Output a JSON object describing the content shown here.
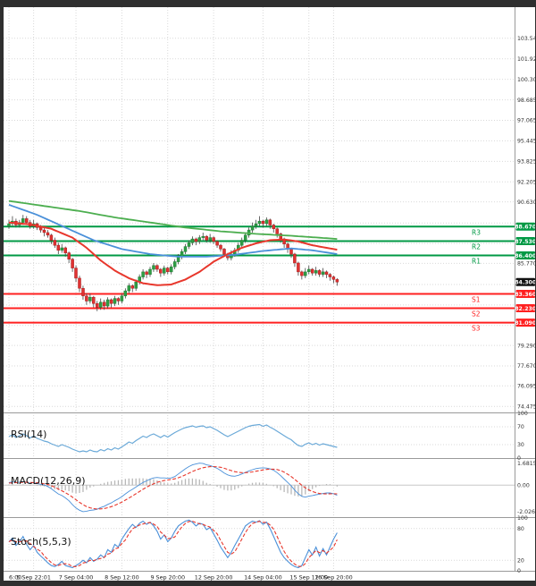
{
  "chart_data": {
    "type": "candlestick",
    "title": "",
    "price_range": [
      74.0,
      106.0
    ],
    "price_axis": {
      "labels": [
        {
          "text": "103.545",
          "value": 103.545
        },
        {
          "text": "101.925",
          "value": 101.925
        },
        {
          "text": "100.305",
          "value": 100.305
        },
        {
          "text": "98.685",
          "value": 98.685
        },
        {
          "text": "97.065",
          "value": 97.065
        },
        {
          "text": "95.445",
          "value": 95.445
        },
        {
          "text": "93.825",
          "value": 93.825
        },
        {
          "text": "92.205",
          "value": 92.205
        },
        {
          "text": "90.630",
          "value": 90.63
        },
        {
          "text": "85.770",
          "value": 85.77
        },
        {
          "text": "79.290",
          "value": 79.29
        },
        {
          "text": "77.670",
          "value": 77.67
        },
        {
          "text": "76.095",
          "value": 76.095
        },
        {
          "text": "74.475",
          "value": 74.475
        }
      ],
      "extra_gridlines": [
        88.965,
        87.345,
        84.105,
        82.485,
        80.865
      ]
    },
    "time_axis": {
      "tick_indices": [
        0,
        7,
        19,
        32,
        45,
        58,
        72,
        85,
        92
      ],
      "tick_labels": [
        "6:00",
        "5 Sep 22:01",
        "7 Sep 04:00",
        "8 Sep 12:00",
        "9 Sep 20:00",
        "12 Sep 20:00",
        "14 Sep 04:00",
        "15 Sep 12:00",
        "16 Sep 20:00"
      ]
    },
    "levels": [
      {
        "name": "R3",
        "price": 88.67,
        "label": "88.670",
        "kind": "resistance"
      },
      {
        "name": "R2",
        "price": 87.53,
        "label": "87.530",
        "kind": "resistance"
      },
      {
        "name": "R1",
        "price": 86.4,
        "label": "86.400",
        "kind": "resistance"
      },
      {
        "name": "S1",
        "price": 83.36,
        "label": "83.360",
        "kind": "support"
      },
      {
        "name": "S2",
        "price": 82.23,
        "label": "82.230",
        "kind": "support"
      },
      {
        "name": "S3",
        "price": 81.09,
        "label": "81.090",
        "kind": "support"
      }
    ],
    "current_price": {
      "label": "84.300",
      "price": 84.3
    },
    "candles_ohlc": [
      [
        88.7,
        89.2,
        88.5,
        88.9
      ],
      [
        88.9,
        89.5,
        88.7,
        89.1
      ],
      [
        89.1,
        89.3,
        88.6,
        88.8
      ],
      [
        88.8,
        89.2,
        88.6,
        89.0
      ],
      [
        89.0,
        89.6,
        88.8,
        89.3
      ],
      [
        89.3,
        89.5,
        88.8,
        89.0
      ],
      [
        89.0,
        89.2,
        88.5,
        88.7
      ],
      [
        88.7,
        89.2,
        88.5,
        88.9
      ],
      [
        88.9,
        89.0,
        88.4,
        88.6
      ],
      [
        88.6,
        88.8,
        88.2,
        88.4
      ],
      [
        88.4,
        88.6,
        87.9,
        88.2
      ],
      [
        88.2,
        88.4,
        87.8,
        88.0
      ],
      [
        88.0,
        88.1,
        87.3,
        87.6
      ],
      [
        87.6,
        87.8,
        87.0,
        87.2
      ],
      [
        87.2,
        87.4,
        86.5,
        86.8
      ],
      [
        86.8,
        87.3,
        86.6,
        87.0
      ],
      [
        87.0,
        87.1,
        86.3,
        86.6
      ],
      [
        86.6,
        86.7,
        85.8,
        86.1
      ],
      [
        86.1,
        86.2,
        85.1,
        85.4
      ],
      [
        85.4,
        85.6,
        84.3,
        84.6
      ],
      [
        84.6,
        84.8,
        83.5,
        83.8
      ],
      [
        83.8,
        84.0,
        82.9,
        83.2
      ],
      [
        83.2,
        83.4,
        82.5,
        82.8
      ],
      [
        82.8,
        83.4,
        82.6,
        83.1
      ],
      [
        83.1,
        83.2,
        82.3,
        82.6
      ],
      [
        82.6,
        82.8,
        82.0,
        82.3
      ],
      [
        82.3,
        83.0,
        82.1,
        82.7
      ],
      [
        82.7,
        82.9,
        82.1,
        82.4
      ],
      [
        82.4,
        83.1,
        82.2,
        82.9
      ],
      [
        82.9,
        83.0,
        82.3,
        82.6
      ],
      [
        82.6,
        83.2,
        82.4,
        83.0
      ],
      [
        83.0,
        83.1,
        82.5,
        82.8
      ],
      [
        82.8,
        83.4,
        82.6,
        83.2
      ],
      [
        83.2,
        83.8,
        83.0,
        83.6
      ],
      [
        83.6,
        84.2,
        83.4,
        84.0
      ],
      [
        84.0,
        84.1,
        83.5,
        83.8
      ],
      [
        83.8,
        84.5,
        83.6,
        84.3
      ],
      [
        84.3,
        84.9,
        84.1,
        84.7
      ],
      [
        84.7,
        85.3,
        84.5,
        85.1
      ],
      [
        85.1,
        85.2,
        84.6,
        84.9
      ],
      [
        84.9,
        85.5,
        84.7,
        85.3
      ],
      [
        85.3,
        85.8,
        85.1,
        85.6
      ],
      [
        85.6,
        85.7,
        85.1,
        85.3
      ],
      [
        85.3,
        85.4,
        84.7,
        85.0
      ],
      [
        85.0,
        85.6,
        84.8,
        85.4
      ],
      [
        85.4,
        85.5,
        84.9,
        85.1
      ],
      [
        85.1,
        85.7,
        84.9,
        85.5
      ],
      [
        85.5,
        86.1,
        85.3,
        85.9
      ],
      [
        85.9,
        86.5,
        85.7,
        86.3
      ],
      [
        86.3,
        86.9,
        86.1,
        86.7
      ],
      [
        86.7,
        87.3,
        86.5,
        87.1
      ],
      [
        87.1,
        87.6,
        86.9,
        87.4
      ],
      [
        87.4,
        87.9,
        87.2,
        87.7
      ],
      [
        87.7,
        87.8,
        87.2,
        87.5
      ],
      [
        87.5,
        88.0,
        87.3,
        87.8
      ],
      [
        87.8,
        88.2,
        87.6,
        87.9
      ],
      [
        87.9,
        88.0,
        87.4,
        87.6
      ],
      [
        87.6,
        88.1,
        87.4,
        87.8
      ],
      [
        87.8,
        87.9,
        87.3,
        87.5
      ],
      [
        87.5,
        87.6,
        87.0,
        87.2
      ],
      [
        87.2,
        87.3,
        86.7,
        86.9
      ],
      [
        86.9,
        87.0,
        86.3,
        86.5
      ],
      [
        86.5,
        86.6,
        86.0,
        86.2
      ],
      [
        86.2,
        86.8,
        86.0,
        86.5
      ],
      [
        86.5,
        87.0,
        86.3,
        86.8
      ],
      [
        86.8,
        87.4,
        86.6,
        87.2
      ],
      [
        87.2,
        87.8,
        87.0,
        87.6
      ],
      [
        87.6,
        88.2,
        87.4,
        88.0
      ],
      [
        88.0,
        88.6,
        87.8,
        88.4
      ],
      [
        88.4,
        89.0,
        88.2,
        88.7
      ],
      [
        88.7,
        89.2,
        88.5,
        88.9
      ],
      [
        88.9,
        89.5,
        88.7,
        89.1
      ],
      [
        89.1,
        89.2,
        88.6,
        88.9
      ],
      [
        88.9,
        89.4,
        88.7,
        89.2
      ],
      [
        89.2,
        89.3,
        88.5,
        88.8
      ],
      [
        88.8,
        88.9,
        88.2,
        88.5
      ],
      [
        88.5,
        88.6,
        87.8,
        88.1
      ],
      [
        88.1,
        88.2,
        87.4,
        87.7
      ],
      [
        87.7,
        87.8,
        87.0,
        87.3
      ],
      [
        87.3,
        87.4,
        86.6,
        86.9
      ],
      [
        86.9,
        87.0,
        86.2,
        86.5
      ],
      [
        86.5,
        86.6,
        85.5,
        85.8
      ],
      [
        85.8,
        85.9,
        84.8,
        85.1
      ],
      [
        85.1,
        85.2,
        84.5,
        84.8
      ],
      [
        84.8,
        85.4,
        84.6,
        85.1
      ],
      [
        85.1,
        85.6,
        84.9,
        85.3
      ],
      [
        85.3,
        85.4,
        84.8,
        85.0
      ],
      [
        85.0,
        85.5,
        84.8,
        85.2
      ],
      [
        85.2,
        85.3,
        84.7,
        84.9
      ],
      [
        84.9,
        85.4,
        84.7,
        85.1
      ],
      [
        85.1,
        85.2,
        84.6,
        84.9
      ],
      [
        84.9,
        85.0,
        84.4,
        84.7
      ],
      [
        84.7,
        84.8,
        84.2,
        84.5
      ],
      [
        84.5,
        84.6,
        84.0,
        84.3
      ]
    ],
    "moving_averages": [
      {
        "name": "ma-slow-green",
        "points": [
          [
            0,
            90.7
          ],
          [
            10,
            90.3
          ],
          [
            20,
            89.9
          ],
          [
            30,
            89.4
          ],
          [
            40,
            89.0
          ],
          [
            50,
            88.6
          ],
          [
            60,
            88.3
          ],
          [
            70,
            88.1
          ],
          [
            80,
            87.95
          ],
          [
            93,
            87.7
          ]
        ]
      },
      {
        "name": "ma-mid-blue",
        "points": [
          [
            0,
            90.4
          ],
          [
            8,
            89.6
          ],
          [
            16,
            88.6
          ],
          [
            24,
            87.6
          ],
          [
            32,
            86.9
          ],
          [
            40,
            86.5
          ],
          [
            48,
            86.3
          ],
          [
            56,
            86.3
          ],
          [
            64,
            86.45
          ],
          [
            72,
            86.75
          ],
          [
            80,
            86.95
          ],
          [
            86,
            86.8
          ],
          [
            93,
            86.5
          ]
        ]
      },
      {
        "name": "ma-fast-red",
        "points": [
          [
            0,
            89.0
          ],
          [
            6,
            88.85
          ],
          [
            12,
            88.5
          ],
          [
            18,
            87.8
          ],
          [
            22,
            87.0
          ],
          [
            26,
            86.0
          ],
          [
            30,
            85.2
          ],
          [
            34,
            84.6
          ],
          [
            38,
            84.2
          ],
          [
            42,
            84.05
          ],
          [
            46,
            84.1
          ],
          [
            50,
            84.5
          ],
          [
            54,
            85.1
          ],
          [
            58,
            85.9
          ],
          [
            62,
            86.5
          ],
          [
            66,
            87.0
          ],
          [
            70,
            87.35
          ],
          [
            74,
            87.6
          ],
          [
            78,
            87.65
          ],
          [
            82,
            87.5
          ],
          [
            86,
            87.2
          ],
          [
            90,
            87.0
          ],
          [
            93,
            86.85
          ]
        ]
      }
    ],
    "rsi": {
      "label": "RSI(14)",
      "axis": [
        {
          "text": "100",
          "value": 100
        },
        {
          "text": "70",
          "value": 70
        },
        {
          "text": "30",
          "value": 30
        },
        {
          "text": "0",
          "value": 0
        }
      ],
      "thresholds": [
        70,
        30
      ],
      "values": [
        48,
        52,
        46,
        50,
        54,
        50,
        45,
        49,
        44,
        41,
        38,
        36,
        32,
        29,
        26,
        30,
        27,
        24,
        20,
        17,
        14,
        16,
        14,
        18,
        15,
        14,
        19,
        16,
        21,
        18,
        23,
        20,
        25,
        30,
        36,
        33,
        39,
        44,
        49,
        46,
        51,
        54,
        50,
        46,
        51,
        47,
        52,
        57,
        61,
        65,
        68,
        70,
        72,
        69,
        71,
        72,
        68,
        70,
        66,
        62,
        57,
        52,
        48,
        52,
        56,
        60,
        64,
        68,
        71,
        73,
        74,
        75,
        71,
        74,
        69,
        65,
        60,
        55,
        50,
        45,
        41,
        34,
        28,
        26,
        31,
        34,
        30,
        33,
        29,
        32,
        30,
        28,
        26,
        24
      ]
    },
    "macd": {
      "label": "MACD(12,26,9)",
      "axis": [
        {
          "text": "1.6815",
          "value": 1.6815
        },
        {
          "text": "0.00",
          "value": 0
        },
        {
          "text": "-2.0269",
          "value": -2.0269
        }
      ],
      "range": [
        -2.45,
        2.0
      ],
      "macd": [
        0.2,
        0.25,
        0.2,
        0.23,
        0.27,
        0.22,
        0.16,
        0.19,
        0.12,
        0.06,
        0.0,
        -0.1,
        -0.28,
        -0.48,
        -0.68,
        -0.8,
        -0.98,
        -1.2,
        -1.5,
        -1.75,
        -1.92,
        -2.03,
        -2.0,
        -1.93,
        -1.9,
        -1.85,
        -1.72,
        -1.62,
        -1.48,
        -1.36,
        -1.2,
        -1.05,
        -0.88,
        -0.68,
        -0.48,
        -0.32,
        -0.15,
        0.03,
        0.2,
        0.32,
        0.45,
        0.55,
        0.58,
        0.55,
        0.55,
        0.52,
        0.55,
        0.65,
        0.85,
        1.05,
        1.25,
        1.42,
        1.55,
        1.62,
        1.68,
        1.65,
        1.55,
        1.5,
        1.4,
        1.28,
        1.12,
        0.92,
        0.78,
        0.7,
        0.68,
        0.75,
        0.85,
        0.97,
        1.08,
        1.18,
        1.26,
        1.3,
        1.32,
        1.3,
        1.24,
        1.14,
        0.95,
        0.72,
        0.46,
        0.2,
        -0.06,
        -0.38,
        -0.66,
        -0.86,
        -0.92,
        -0.85,
        -0.8,
        -0.74,
        -0.7,
        -0.64,
        -0.6,
        -0.6,
        -0.66,
        -0.78
      ],
      "signal": [
        0.15,
        0.17,
        0.19,
        0.2,
        0.21,
        0.21,
        0.2,
        0.19,
        0.17,
        0.14,
        0.1,
        0.05,
        -0.04,
        -0.16,
        -0.3,
        -0.44,
        -0.58,
        -0.74,
        -0.92,
        -1.12,
        -1.32,
        -1.5,
        -1.64,
        -1.74,
        -1.8,
        -1.83,
        -1.82,
        -1.79,
        -1.73,
        -1.65,
        -1.55,
        -1.43,
        -1.3,
        -1.15,
        -0.99,
        -0.83,
        -0.66,
        -0.49,
        -0.32,
        -0.16,
        -0.02,
        0.1,
        0.21,
        0.29,
        0.35,
        0.39,
        0.43,
        0.48,
        0.56,
        0.66,
        0.78,
        0.91,
        1.04,
        1.15,
        1.25,
        1.33,
        1.38,
        1.41,
        1.42,
        1.4,
        1.36,
        1.29,
        1.2,
        1.11,
        1.03,
        0.98,
        0.95,
        0.95,
        0.97,
        1.01,
        1.06,
        1.11,
        1.16,
        1.2,
        1.22,
        1.22,
        1.19,
        1.11,
        0.99,
        0.83,
        0.65,
        0.44,
        0.21,
        -0.01,
        -0.21,
        -0.37,
        -0.49,
        -0.58,
        -0.64,
        -0.67,
        -0.68,
        -0.67,
        -0.66,
        -0.67
      ]
    },
    "stoch": {
      "label": "Stoch(5,5,3)",
      "axis": [
        {
          "text": "100",
          "value": 100
        },
        {
          "text": "80",
          "value": 80
        },
        {
          "text": "20",
          "value": 20
        },
        {
          "text": "0",
          "value": 0
        }
      ],
      "thresholds": [
        80,
        20
      ],
      "k": [
        55,
        62,
        48,
        55,
        65,
        50,
        40,
        48,
        35,
        28,
        22,
        15,
        10,
        8,
        12,
        18,
        10,
        8,
        6,
        10,
        14,
        20,
        15,
        25,
        18,
        22,
        30,
        25,
        40,
        35,
        50,
        45,
        60,
        70,
        80,
        88,
        82,
        90,
        94,
        88,
        92,
        85,
        75,
        60,
        68,
        55,
        62,
        75,
        85,
        90,
        94,
        96,
        92,
        85,
        90,
        88,
        78,
        82,
        70,
        58,
        45,
        35,
        25,
        35,
        48,
        60,
        72,
        85,
        90,
        94,
        92,
        95,
        88,
        92,
        80,
        65,
        50,
        35,
        25,
        18,
        12,
        8,
        6,
        10,
        25,
        40,
        30,
        45,
        28,
        42,
        30,
        45,
        60,
        72
      ]
    },
    "style": {
      "up": "#2f9e44",
      "up_border": "#1e7a33",
      "down": "#e03131",
      "down_border": "#a61e1e",
      "wick": "#444444",
      "ma_green": "#4cae4f",
      "ma_blue": "#4a90d9",
      "ma_red": "#e8372c",
      "res_line": "#009944",
      "sup_line": "#ff2020",
      "price_badge_bg": "#111111",
      "grid": "#d9d9d9",
      "separator": "#9a9a9a",
      "axis_text": "#333333",
      "rsi_line": "#6aa9d8",
      "macd_hist": "#b8b8b8",
      "macd_line": "#4a90d9",
      "macd_signal": "#e8372c",
      "stoch_k": "#4a90d9",
      "stoch_d": "#e8372c"
    }
  }
}
